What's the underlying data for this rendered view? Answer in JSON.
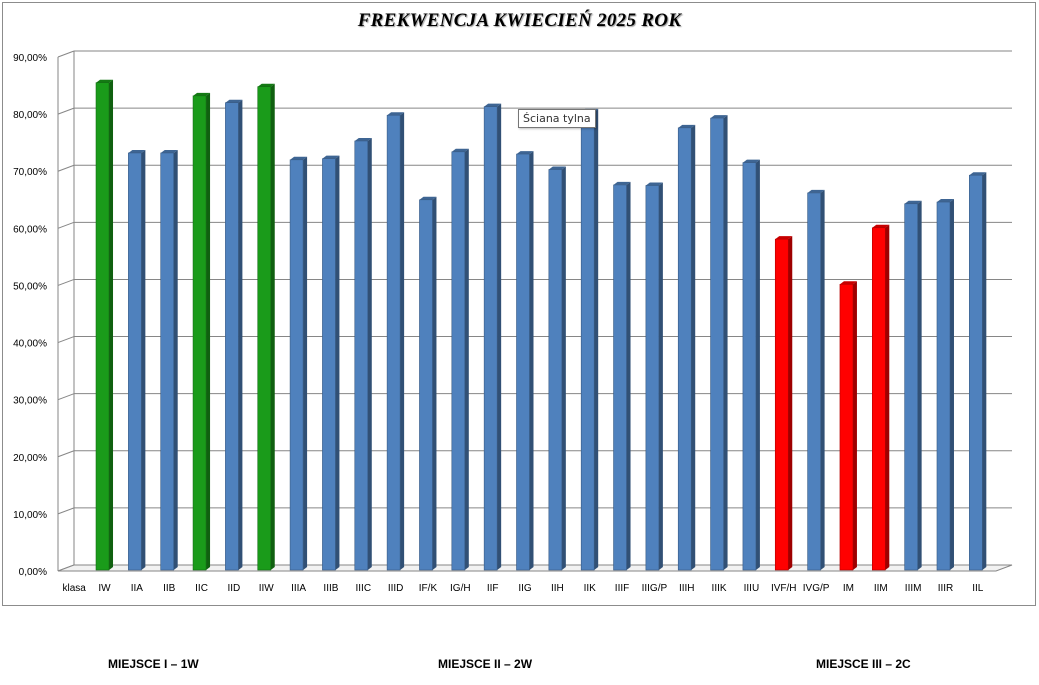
{
  "chart_data": {
    "type": "bar",
    "title": "FREKWENCJA KWIECIEŃ 2025 ROK",
    "first_category_label": "klasa",
    "categories": [
      "IW",
      "IIA",
      "IIB",
      "IIC",
      "IID",
      "IIW",
      "IIIA",
      "IIIB",
      "IIIC",
      "IIID",
      "IF/K",
      "IG/H",
      "IIF",
      "IIG",
      "IIH",
      "IIK",
      "IIIF",
      "IIIG/P",
      "IIIH",
      "IIIK",
      "IIIU",
      "IVF/H",
      "IVG/P",
      "IM",
      "IIM",
      "IIIM",
      "IIIR",
      "IIL"
    ],
    "values": [
      85.5,
      73.2,
      73.2,
      83.2,
      82.0,
      84.8,
      72.0,
      72.2,
      75.3,
      79.8,
      65.0,
      73.4,
      81.3,
      73.0,
      70.3,
      80.4,
      67.6,
      67.5,
      77.6,
      79.3,
      71.5,
      58.1,
      66.2,
      50.2,
      60.1,
      64.3,
      64.6,
      69.3
    ],
    "highlight": [
      "green",
      "blue",
      "blue",
      "green",
      "blue",
      "green",
      "blue",
      "blue",
      "blue",
      "blue",
      "blue",
      "blue",
      "blue",
      "blue",
      "blue",
      "blue",
      "blue",
      "blue",
      "blue",
      "blue",
      "blue",
      "red",
      "blue",
      "red",
      "red",
      "blue",
      "blue",
      "blue"
    ],
    "ylim": [
      0,
      90
    ],
    "yticks": [
      "0,00%",
      "10,00%",
      "20,00%",
      "30,00%",
      "40,00%",
      "50,00%",
      "60,00%",
      "70,00%",
      "80,00%",
      "90,00%"
    ],
    "grid": true,
    "legend": "none"
  },
  "colors": {
    "green": "#1a9b1a",
    "blue": "#4f81bd",
    "red": "#ff0000"
  },
  "tooltip": "Ściana tylna",
  "footer": {
    "place1": "MIEJSCE I – 1W",
    "place2": "MIEJSCE II – 2W",
    "place3": "MIEJSCE III – 2C"
  }
}
